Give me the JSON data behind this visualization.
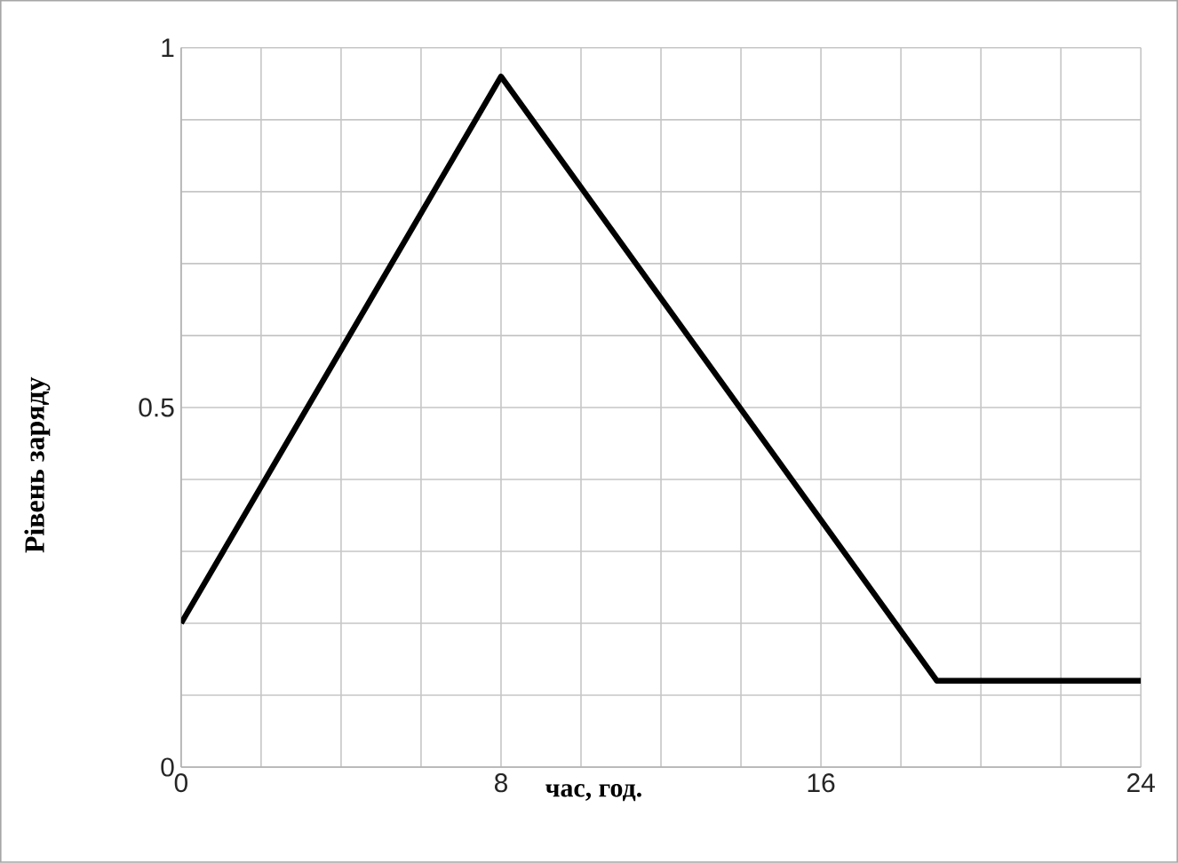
{
  "chart_data": {
    "type": "line",
    "xlabel": "час, год.",
    "ylabel": "Рівень заряду",
    "x": [
      0,
      8,
      18.9,
      24
    ],
    "series": [
      {
        "color": "#000000",
        "values": [
          0.2,
          0.96,
          0.12,
          0.12
        ]
      }
    ],
    "xlim": [
      0,
      24
    ],
    "ylim": [
      0,
      1
    ],
    "xticks": [
      0,
      {
        "value": 2,
        "label": null
      },
      {
        "value": 4,
        "label": null
      },
      {
        "value": 6,
        "label": null
      },
      8,
      {
        "value": 10,
        "label": null
      },
      {
        "value": 12,
        "label": null
      },
      {
        "value": 14,
        "label": null
      },
      16,
      {
        "value": 18,
        "label": null
      },
      {
        "value": 20,
        "label": null
      },
      {
        "value": 22,
        "label": null
      },
      24
    ],
    "yticks": [
      0,
      {
        "value": 0.1,
        "label": null
      },
      {
        "value": 0.2,
        "label": null
      },
      {
        "value": 0.3,
        "label": null
      },
      {
        "value": 0.4,
        "label": null
      },
      0.5,
      {
        "value": 0.6,
        "label": null
      },
      {
        "value": 0.7,
        "label": null
      },
      {
        "value": 0.8,
        "label": null
      },
      {
        "value": 0.9,
        "label": null
      },
      1
    ],
    "grid": true,
    "marker": "none",
    "line_style": "solid"
  }
}
